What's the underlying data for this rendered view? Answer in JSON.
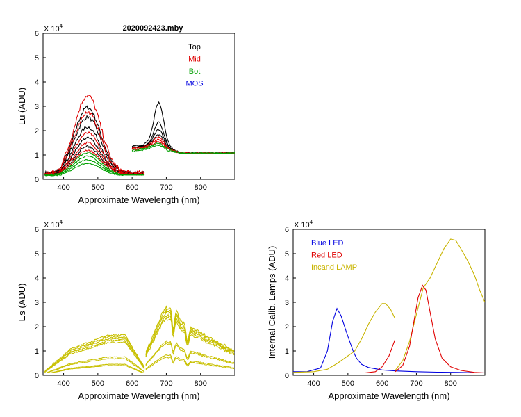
{
  "chart_data": [
    {
      "id": "lu",
      "type": "line",
      "title": "2020092423.mby",
      "xlabel": "Approximate Wavelength (nm)",
      "ylabel": "Lu (ADU)",
      "multiplier": "X 10",
      "exponent": "4",
      "xlim": [
        340,
        900
      ],
      "ylim": [
        0,
        6
      ],
      "xticks": [
        400,
        500,
        600,
        700,
        800
      ],
      "yticks": [
        0,
        1,
        2,
        3,
        4,
        5,
        6
      ],
      "legend": [
        "Top",
        "Mid",
        "Bot",
        "MOS"
      ],
      "legend_colors": [
        "#000000",
        "#e00000",
        "#00a000",
        "#0000e0"
      ],
      "legend_position": "top-right",
      "series": [
        {
          "name": "Top",
          "color": "#000000",
          "peak": 2.95,
          "base": 0.25,
          "mode": "vis"
        },
        {
          "name": "Top",
          "color": "#000000",
          "peak": 2.55,
          "base": 0.24,
          "mode": "vis"
        },
        {
          "name": "Top",
          "color": "#000000",
          "peak": 2.15,
          "base": 0.23,
          "mode": "vis"
        },
        {
          "name": "Top",
          "color": "#000000",
          "peak": 1.7,
          "base": 0.22,
          "mode": "vis"
        },
        {
          "name": "Top",
          "color": "#000000",
          "peak": 1.35,
          "base": 0.2,
          "mode": "vis"
        },
        {
          "name": "Mid",
          "color": "#e00000",
          "peak": 3.45,
          "base": 0.25,
          "mode": "vis"
        },
        {
          "name": "Mid",
          "color": "#e00000",
          "peak": 2.75,
          "base": 0.24,
          "mode": "vis"
        },
        {
          "name": "Mid",
          "color": "#e00000",
          "peak": 1.9,
          "base": 0.22,
          "mode": "vis"
        },
        {
          "name": "Mid",
          "color": "#e00000",
          "peak": 1.5,
          "base": 0.2,
          "mode": "vis"
        },
        {
          "name": "Mid",
          "color": "#e00000",
          "peak": 1.2,
          "base": 0.19,
          "mode": "vis"
        },
        {
          "name": "Bot",
          "color": "#00a000",
          "peak": 1.1,
          "base": 0.18,
          "mode": "vis"
        },
        {
          "name": "Bot",
          "color": "#00a000",
          "peak": 0.95,
          "base": 0.17,
          "mode": "vis"
        },
        {
          "name": "Bot",
          "color": "#00a000",
          "peak": 0.8,
          "base": 0.16,
          "mode": "vis"
        },
        {
          "name": "Bot",
          "color": "#00a000",
          "peak": 0.65,
          "base": 0.15,
          "mode": "vis"
        },
        {
          "name": "Top",
          "color": "#000000",
          "peak": 3.1,
          "base": 1.35,
          "mode": "nir"
        },
        {
          "name": "Top",
          "color": "#000000",
          "peak": 2.3,
          "base": 1.3,
          "mode": "nir"
        },
        {
          "name": "Top",
          "color": "#000000",
          "peak": 2.0,
          "base": 1.3,
          "mode": "nir"
        },
        {
          "name": "Top",
          "color": "#000000",
          "peak": 1.8,
          "base": 1.28,
          "mode": "nir"
        },
        {
          "name": "Mid",
          "color": "#e00000",
          "peak": 1.7,
          "base": 1.28,
          "mode": "nir"
        },
        {
          "name": "Mid",
          "color": "#e00000",
          "peak": 1.6,
          "base": 1.25,
          "mode": "nir"
        },
        {
          "name": "Mid",
          "color": "#e00000",
          "peak": 1.5,
          "base": 1.22,
          "mode": "nir"
        },
        {
          "name": "Bot",
          "color": "#00a000",
          "peak": 1.45,
          "base": 1.2,
          "mode": "nir"
        },
        {
          "name": "Bot",
          "color": "#00a000",
          "peak": 1.38,
          "base": 1.15,
          "mode": "nir"
        }
      ]
    },
    {
      "id": "es",
      "type": "line",
      "title": "",
      "xlabel": "Approximate Wavelength (nm)",
      "ylabel": "Es  (ADU)",
      "multiplier": "X 10",
      "exponent": "4",
      "xlim": [
        340,
        900
      ],
      "ylim": [
        0,
        6
      ],
      "xticks": [
        400,
        500,
        600,
        700,
        800
      ],
      "yticks": [
        0,
        1,
        2,
        3,
        4,
        5,
        6
      ],
      "series": [
        {
          "name": "Es",
          "color": "#c8c000",
          "vis": 1.65,
          "nir": 2.6
        },
        {
          "name": "Es",
          "color": "#c8c000",
          "vis": 1.58,
          "nir": 2.5
        },
        {
          "name": "Es",
          "color": "#c8c000",
          "vis": 1.5,
          "nir": 2.4
        },
        {
          "name": "Es",
          "color": "#c8c000",
          "vis": 1.42,
          "nir": 2.3
        },
        {
          "name": "Es",
          "color": "#c8c000",
          "vis": 1.35,
          "nir": 2.2
        },
        {
          "name": "Es",
          "color": "#c8c000",
          "vis": 0.75,
          "nir": 1.3
        },
        {
          "name": "Es",
          "color": "#c8c000",
          "vis": 0.68,
          "nir": 1.22
        },
        {
          "name": "Es",
          "color": "#c8c000",
          "vis": 0.45,
          "nir": 0.78
        },
        {
          "name": "Es",
          "color": "#c8c000",
          "vis": 0.4,
          "nir": 0.7
        }
      ]
    },
    {
      "id": "lamps",
      "type": "line",
      "title": "",
      "xlabel": "Approximate Wavelength (nm)",
      "ylabel": "Internal Calib. Lamps  (ADU)",
      "multiplier": "X 10",
      "exponent": "4",
      "xlim": [
        340,
        900
      ],
      "ylim": [
        0,
        6
      ],
      "xticks": [
        400,
        500,
        600,
        700,
        800
      ],
      "yticks": [
        0,
        1,
        2,
        3,
        4,
        5,
        6
      ],
      "legend": [
        "Blue LED",
        "Red LED",
        "Incand LAMP"
      ],
      "legend_colors": [
        "#0000e0",
        "#e00000",
        "#c8b400"
      ],
      "legend_position": "top-left",
      "series": [
        {
          "name": "Blue LED",
          "color": "#0000e0",
          "x": [
            340,
            380,
            420,
            440,
            455,
            468,
            480,
            495,
            505,
            515,
            525,
            540,
            560,
            600,
            640,
            700,
            760,
            820,
            900
          ],
          "y": [
            0.15,
            0.15,
            0.3,
            1.0,
            2.2,
            2.75,
            2.45,
            1.8,
            1.4,
            1.0,
            0.7,
            0.45,
            0.32,
            0.22,
            0.18,
            0.15,
            0.13,
            0.12,
            0.1
          ]
        },
        {
          "name": "Incand LAMP",
          "color": "#c8b400",
          "x": [
            340,
            400,
            440,
            470,
            500,
            520,
            540,
            560,
            580,
            600,
            610,
            625,
            637
          ],
          "y": [
            0.12,
            0.15,
            0.25,
            0.5,
            0.8,
            1.0,
            1.5,
            2.1,
            2.6,
            2.95,
            2.95,
            2.7,
            2.35
          ]
        },
        {
          "name": "Red LED",
          "color": "#e00000",
          "x": [
            340,
            450,
            550,
            580,
            600,
            620,
            637
          ],
          "y": [
            0.1,
            0.1,
            0.1,
            0.15,
            0.35,
            0.8,
            1.45
          ]
        },
        {
          "name": "Incand LAMP",
          "color": "#c8b400",
          "x": [
            638,
            660,
            680,
            700,
            720,
            740,
            760,
            780,
            800,
            815,
            830,
            850,
            870,
            885,
            900
          ],
          "y": [
            0.2,
            0.6,
            1.4,
            2.5,
            3.6,
            4.0,
            4.6,
            5.2,
            5.6,
            5.55,
            5.2,
            4.7,
            4.1,
            3.5,
            3.0
          ]
        },
        {
          "name": "Red LED",
          "color": "#e00000",
          "x": [
            638,
            660,
            680,
            695,
            705,
            718,
            728,
            740,
            755,
            775,
            800,
            830,
            870,
            900
          ],
          "y": [
            0.15,
            0.4,
            1.2,
            2.4,
            3.2,
            3.7,
            3.5,
            2.6,
            1.5,
            0.7,
            0.35,
            0.2,
            0.12,
            0.1
          ]
        }
      ]
    }
  ]
}
